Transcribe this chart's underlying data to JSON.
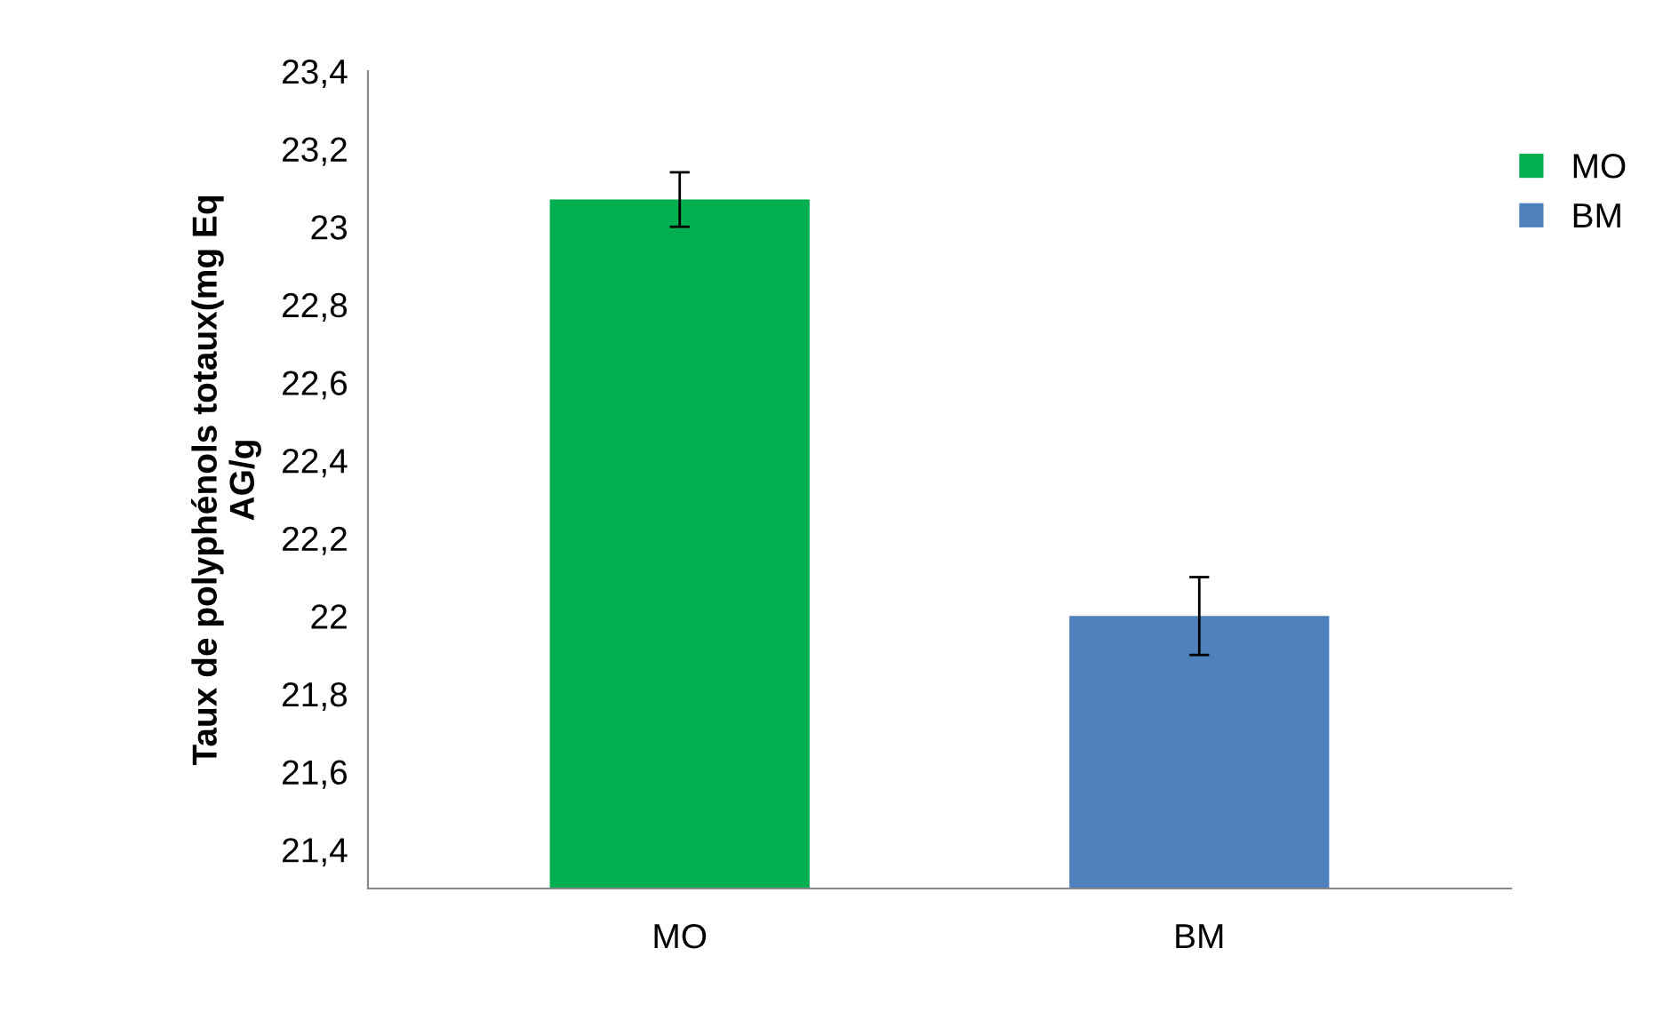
{
  "chart_data": {
    "type": "bar",
    "ylabel": "Taux de polyphénols totaux(mg Eq\nAG/g",
    "categories": [
      "MO",
      "BM"
    ],
    "series": [
      {
        "name": "MO",
        "color": "#00b050",
        "values": [
          23.07,
          null
        ],
        "errors": [
          0.07,
          null
        ]
      },
      {
        "name": "BM",
        "color": "#4f81bd",
        "values": [
          null,
          22.0
        ],
        "errors": [
          null,
          0.1
        ]
      }
    ],
    "ylim": [
      21.3,
      23.4
    ],
    "yticks": [
      {
        "value": 21.4,
        "label": "21,4"
      },
      {
        "value": 21.6,
        "label": "21,6"
      },
      {
        "value": 21.8,
        "label": "21,8"
      },
      22,
      {
        "value": 22.2,
        "label": "22,2"
      },
      {
        "value": 22.4,
        "label": "22,4"
      },
      {
        "value": 22.6,
        "label": "22,6"
      },
      {
        "value": 22.8,
        "label": "22,8"
      },
      23,
      {
        "value": 23.2,
        "label": "23,2"
      },
      {
        "value": 23.4,
        "label": "23,4"
      }
    ],
    "legend": "right",
    "grid": false
  }
}
